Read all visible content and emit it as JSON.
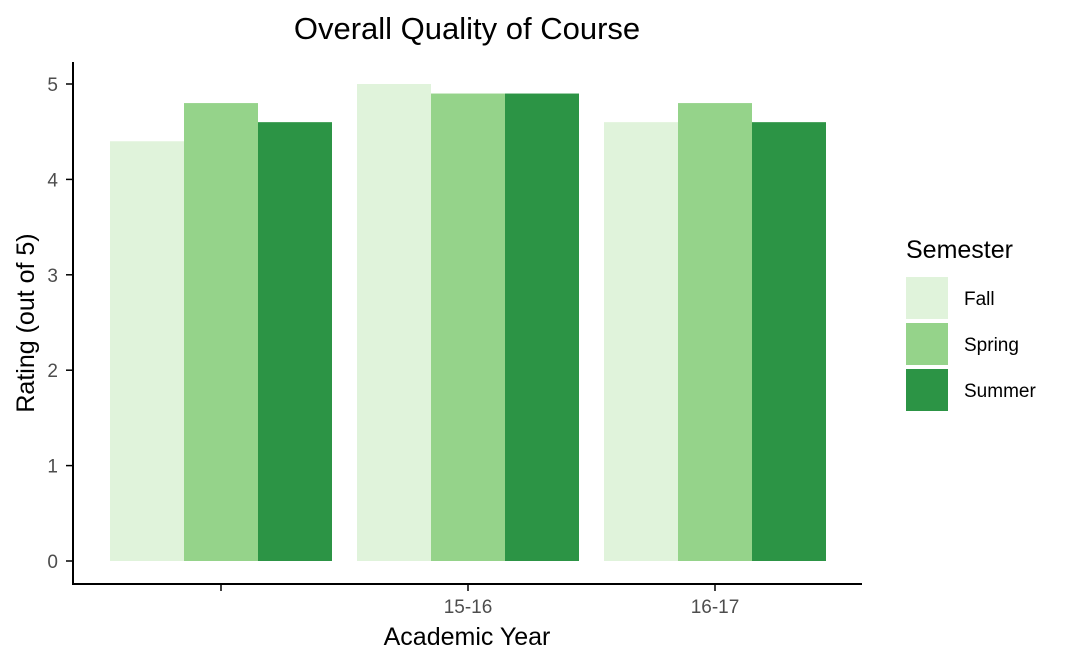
{
  "chart_data": {
    "type": "bar",
    "title": "Overall Quality of Course",
    "xlabel": "Academic Year",
    "ylabel": "Rating (out of 5)",
    "categories": [
      "",
      "15-16",
      "16-17"
    ],
    "ylim": [
      0,
      5
    ],
    "yticks": [
      "0",
      "1",
      "2",
      "3",
      "4",
      "5"
    ],
    "series": [
      {
        "name": "Fall",
        "values": [
          4.4,
          5.0,
          4.6
        ],
        "color": "#e0f3db"
      },
      {
        "name": "Spring",
        "values": [
          4.8,
          4.9,
          4.8
        ],
        "color": "#95d38a"
      },
      {
        "name": "Summer",
        "values": [
          4.6,
          4.9,
          4.6
        ],
        "color": "#2c9445"
      }
    ],
    "legend": {
      "title": "Semester",
      "position": "right"
    },
    "grid": false
  }
}
